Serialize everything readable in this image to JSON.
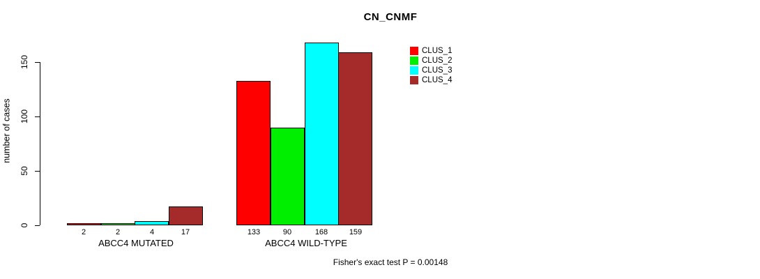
{
  "chart_data": {
    "type": "bar",
    "title": "CN_CNMF",
    "xlabel": "",
    "ylabel": "number of cases",
    "ylim": [
      0,
      175
    ],
    "yticks": [
      0,
      50,
      100,
      150
    ],
    "grid": false,
    "legend_position": "top-right",
    "bar_labels": true,
    "categories": [
      "ABCC4 MUTATED",
      "ABCC4 WILD-TYPE"
    ],
    "series": [
      {
        "name": "CLUS_1",
        "color": "#FF0000",
        "values": [
          2,
          133
        ]
      },
      {
        "name": "CLUS_2",
        "color": "#00EE00",
        "values": [
          2,
          90
        ]
      },
      {
        "name": "CLUS_3",
        "color": "#00FFFF",
        "values": [
          4,
          168
        ]
      },
      {
        "name": "CLUS_4",
        "color": "#A52A2A",
        "values": [
          17,
          159
        ]
      }
    ],
    "annotation": "Fisher's exact test P = 0.00148"
  }
}
